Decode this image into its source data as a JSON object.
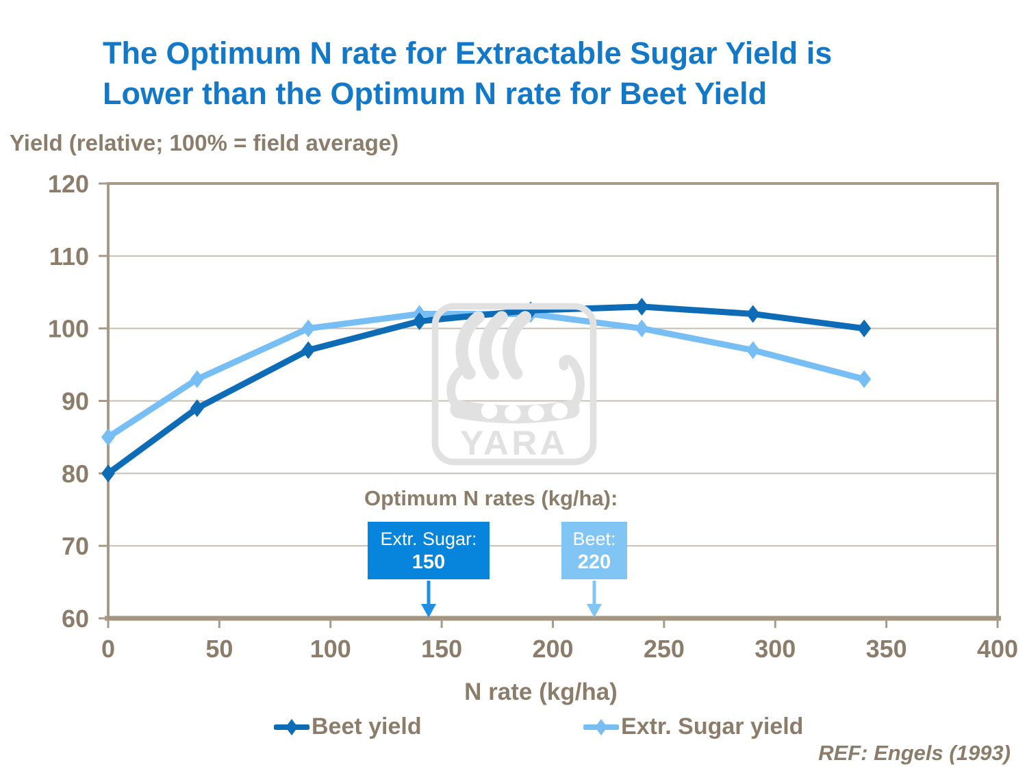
{
  "page": {
    "title_line1": "The Optimum N rate for Extractable Sugar Yield is",
    "title_line2": "Lower than the Optimum N rate for Beet Yield",
    "ref": "REF: Engels (1993)"
  },
  "watermark": {
    "text": "YARA"
  },
  "annotation": {
    "title": "Optimum N rates (kg/ha):",
    "boxes": [
      {
        "label": "Extr. Sugar:",
        "value": "150",
        "color": "#0785DC",
        "arrow_color": "#1E8FE2"
      },
      {
        "label": "Beet:",
        "value": "220",
        "color": "#80C5F4",
        "arrow_color": "#80C5F4"
      }
    ]
  },
  "colors": {
    "title_blue": "#1478C8",
    "text_brown": "#8C7D6B",
    "axis_line": "#A89A88",
    "axis_bottom": "#A39582",
    "gridline": "#C9BEB0",
    "watermark_gray": "#E1E1E1",
    "background": "#FFFFFF"
  },
  "chart_data": {
    "type": "line",
    "title": "",
    "y_axis_label": "Yield (relative; 100% = field average)",
    "x_axis_label": "N rate (kg/ha)",
    "x": [
      0,
      40,
      90,
      140,
      190,
      240,
      290,
      340
    ],
    "series": [
      {
        "name": "Beet yield",
        "color": "#0E6CB6",
        "values": [
          80,
          89,
          97,
          101,
          102.5,
          103,
          102,
          100
        ]
      },
      {
        "name": "Extr. Sugar yield",
        "color": "#76BEF3",
        "values": [
          85,
          93,
          100,
          102,
          102,
          100,
          97,
          93
        ]
      }
    ],
    "xlim": [
      0,
      400
    ],
    "ylim": [
      60,
      120
    ],
    "x_ticks": [
      0,
      50,
      100,
      150,
      200,
      250,
      300,
      350,
      400
    ],
    "y_ticks": [
      60,
      70,
      80,
      90,
      100,
      110,
      120
    ],
    "grid": true,
    "legend_position": "bottom",
    "optimum_n_rates": {
      "extr_sugar": 150,
      "beet": 220
    }
  }
}
